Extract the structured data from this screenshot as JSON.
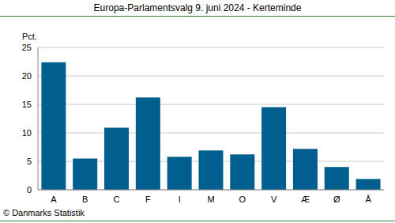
{
  "chart_data": {
    "type": "bar",
    "title": "Europa-Parlamentsvalg 9. juni 2024 - Kerteminde",
    "y_label": "Pct.",
    "annotations": [
      "© Danmarks Statistik"
    ],
    "categories": [
      "A",
      "B",
      "C",
      "F",
      "I",
      "M",
      "O",
      "V",
      "Æ",
      "Ø",
      "Å"
    ],
    "values": [
      22.4,
      5.5,
      10.9,
      16.2,
      5.8,
      6.9,
      6.2,
      14.5,
      7.2,
      4.0,
      1.9
    ],
    "color": "#005f8e",
    "ylim": [
      0,
      25
    ],
    "yticks": [
      0,
      5,
      10,
      15,
      20,
      25
    ],
    "grid": true
  }
}
